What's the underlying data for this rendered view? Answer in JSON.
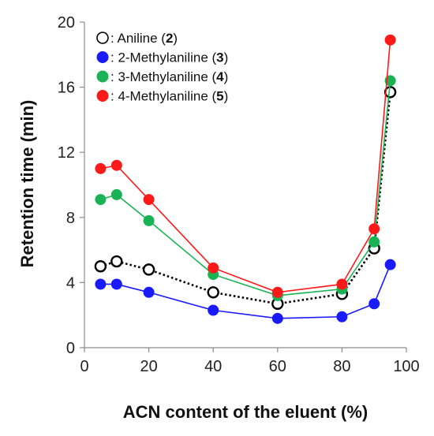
{
  "chart_data": {
    "type": "line",
    "title": "",
    "xlabel": "ACN content of the eluent (%)",
    "ylabel": "Retention time (min)",
    "xlim": [
      0,
      100
    ],
    "ylim": [
      0,
      20
    ],
    "xticks": [
      0,
      20,
      40,
      60,
      80,
      100
    ],
    "yticks": [
      0,
      4,
      8,
      12,
      16,
      20
    ],
    "grid": false,
    "legend_position": "top-left",
    "series": [
      {
        "name": "Aniline",
        "label_prefix": ": Aniline (",
        "label_bold": "2",
        "label_suffix": ")",
        "color": "#000000",
        "marker_fill": "#ffffff",
        "line_style": "dotted",
        "x": [
          5,
          10,
          20,
          40,
          60,
          80,
          90,
          95
        ],
        "y": [
          5.0,
          5.3,
          4.8,
          3.4,
          2.7,
          3.3,
          6.1,
          15.7
        ]
      },
      {
        "name": "2-Methylaniline",
        "label_prefix": ": 2-Methylaniline (",
        "label_bold": "3",
        "label_suffix": ")",
        "color": "#1a1aff",
        "marker_fill": "#1a1aff",
        "line_style": "solid",
        "x": [
          5,
          10,
          20,
          40,
          60,
          80,
          90,
          95
        ],
        "y": [
          3.9,
          3.9,
          3.4,
          2.3,
          1.8,
          1.9,
          2.7,
          5.1
        ]
      },
      {
        "name": "3-Methylaniline",
        "label_prefix": ": 3-Methylaniline (",
        "label_bold": "4",
        "label_suffix": ")",
        "color": "#19b355",
        "marker_fill": "#19b355",
        "line_style": "solid",
        "x": [
          5,
          10,
          20,
          40,
          60,
          80,
          90,
          95
        ],
        "y": [
          9.1,
          9.4,
          7.8,
          4.5,
          3.2,
          3.6,
          6.5,
          16.4
        ]
      },
      {
        "name": "4-Methylaniline",
        "label_prefix": ": 4-Methylaniline (",
        "label_bold": "5",
        "label_suffix": ")",
        "color": "#ff1a1a",
        "marker_fill": "#ff1a1a",
        "line_style": "solid",
        "x": [
          5,
          10,
          20,
          40,
          60,
          80,
          90,
          95
        ],
        "y": [
          11.0,
          11.2,
          9.1,
          4.9,
          3.4,
          3.9,
          7.3,
          18.9
        ]
      }
    ]
  }
}
